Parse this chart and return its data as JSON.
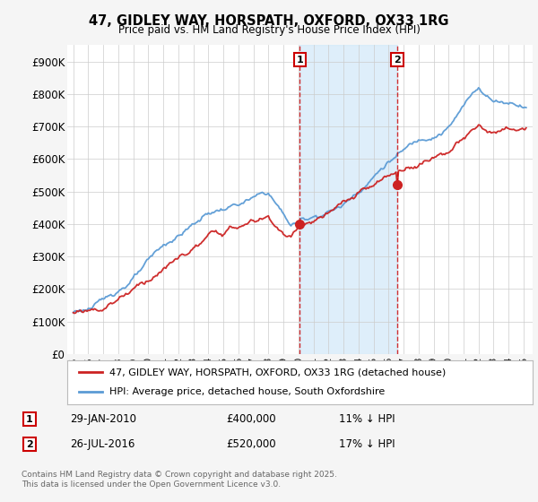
{
  "title": "47, GIDLEY WAY, HORSPATH, OXFORD, OX33 1RG",
  "subtitle": "Price paid vs. HM Land Registry's House Price Index (HPI)",
  "ytick_labels": [
    "£0",
    "£100K",
    "£200K",
    "£300K",
    "£400K",
    "£500K",
    "£600K",
    "£700K",
    "£800K",
    "£900K"
  ],
  "yticks": [
    0,
    100000,
    200000,
    300000,
    400000,
    500000,
    600000,
    700000,
    800000,
    900000
  ],
  "ylim": [
    0,
    950000
  ],
  "hpi_color": "#5b9bd5",
  "price_color": "#cc2222",
  "shade_color": "#d0e8f8",
  "marker_edge_color": "#cc0000",
  "marker1_year": 2010.08,
  "marker2_year": 2016.56,
  "marker1_price": 400000,
  "marker2_price": 520000,
  "marker1_date_str": "29-JAN-2010",
  "marker2_date_str": "26-JUL-2016",
  "marker1_price_str": "£400,000",
  "marker2_price_str": "£520,000",
  "marker1_pct": "11% ↓ HPI",
  "marker2_pct": "17% ↓ HPI",
  "legend1": "47, GIDLEY WAY, HORSPATH, OXFORD, OX33 1RG (detached house)",
  "legend2": "HPI: Average price, detached house, South Oxfordshire",
  "footnote": "Contains HM Land Registry data © Crown copyright and database right 2025.\nThis data is licensed under the Open Government Licence v3.0.",
  "bg_color": "#f5f5f5",
  "plot_bg_color": "#ffffff"
}
